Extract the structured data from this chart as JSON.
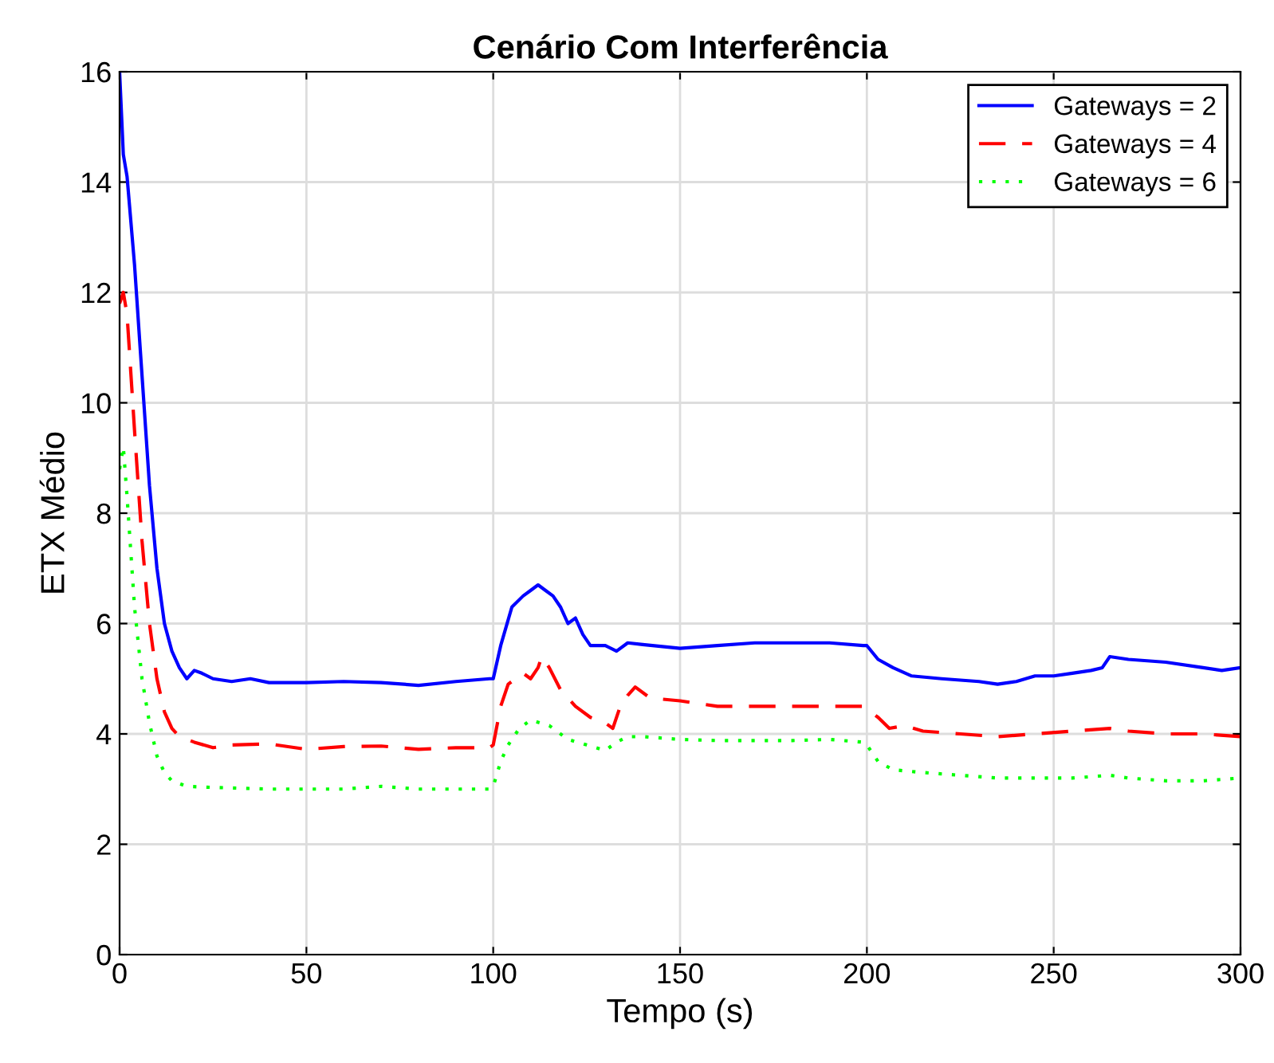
{
  "chart_data": {
    "type": "line",
    "title": "Cenário Com Interferência",
    "xlabel": "Tempo (s)",
    "ylabel": "ETX Médio",
    "xlim": [
      0,
      300
    ],
    "ylim": [
      0,
      16
    ],
    "xticks": [
      0,
      50,
      100,
      150,
      200,
      250,
      300
    ],
    "yticks": [
      0,
      2,
      4,
      6,
      8,
      10,
      12,
      14,
      16
    ],
    "grid": true,
    "legend": "top right",
    "series": [
      {
        "name": "Gateways = 2",
        "color": "#0000ff",
        "line_style": "solid",
        "x": [
          0,
          1,
          2,
          4,
          6,
          8,
          10,
          12,
          14,
          16,
          18,
          20,
          22,
          25,
          30,
          35,
          40,
          50,
          60,
          70,
          80,
          90,
          99,
          100,
          102,
          105,
          108,
          110,
          112,
          114,
          116,
          118,
          120,
          122,
          124,
          126,
          130,
          133,
          136,
          140,
          150,
          160,
          170,
          180,
          190,
          199,
          200,
          203,
          207,
          212,
          220,
          230,
          235,
          240,
          245,
          250,
          255,
          260,
          263,
          265,
          270,
          280,
          290,
          295,
          300
        ],
        "values": [
          16,
          14.5,
          14.1,
          12.5,
          10.5,
          8.5,
          7.0,
          6.0,
          5.5,
          5.2,
          5.0,
          5.15,
          5.1,
          5.0,
          4.95,
          5.0,
          4.93,
          4.93,
          4.95,
          4.93,
          4.88,
          4.95,
          5.0,
          5.0,
          5.6,
          6.3,
          6.5,
          6.6,
          6.7,
          6.6,
          6.5,
          6.3,
          6.0,
          6.1,
          5.8,
          5.6,
          5.6,
          5.5,
          5.65,
          5.62,
          5.55,
          5.6,
          5.65,
          5.65,
          5.65,
          5.6,
          5.6,
          5.35,
          5.2,
          5.05,
          5.0,
          4.95,
          4.9,
          4.95,
          5.05,
          5.05,
          5.1,
          5.15,
          5.2,
          5.4,
          5.35,
          5.3,
          5.2,
          5.15,
          5.2
        ]
      },
      {
        "name": "Gateways = 4",
        "color": "#ff0000",
        "line_style": "dashed",
        "x": [
          0,
          1,
          2,
          4,
          6,
          8,
          10,
          12,
          14,
          16,
          20,
          25,
          30,
          40,
          50,
          60,
          70,
          80,
          90,
          99,
          100,
          102,
          104,
          106,
          108,
          110,
          112,
          113,
          115,
          118,
          122,
          126,
          130,
          132,
          134,
          136,
          138,
          142,
          150,
          160,
          170,
          180,
          190,
          199,
          200,
          203,
          206,
          210,
          215,
          225,
          235,
          245,
          255,
          265,
          270,
          280,
          290,
          300
        ],
        "values": [
          11.8,
          12.0,
          11.6,
          9.5,
          7.5,
          6.0,
          5.0,
          4.4,
          4.1,
          3.95,
          3.85,
          3.75,
          3.8,
          3.82,
          3.72,
          3.77,
          3.78,
          3.72,
          3.75,
          3.75,
          3.8,
          4.5,
          4.9,
          5.0,
          5.1,
          5.0,
          5.2,
          5.4,
          5.2,
          4.8,
          4.5,
          4.3,
          4.2,
          4.1,
          4.5,
          4.7,
          4.85,
          4.65,
          4.6,
          4.5,
          4.5,
          4.5,
          4.5,
          4.5,
          4.45,
          4.3,
          4.1,
          4.15,
          4.05,
          4.0,
          3.95,
          4.0,
          4.05,
          4.1,
          4.05,
          4.0,
          4.0,
          3.95
        ]
      },
      {
        "name": "Gateways = 6",
        "color": "#00ff00",
        "line_style": "dotted",
        "x": [
          0,
          1,
          2,
          4,
          6,
          8,
          10,
          12,
          14,
          18,
          25,
          40,
          50,
          60,
          70,
          80,
          90,
          99,
          100,
          102,
          104,
          107,
          110,
          115,
          120,
          125,
          130,
          133,
          136,
          140,
          150,
          160,
          170,
          180,
          190,
          199,
          200,
          203,
          207,
          215,
          225,
          235,
          245,
          255,
          265,
          270,
          280,
          290,
          300
        ],
        "values": [
          8.8,
          9.2,
          8.3,
          6.3,
          5.0,
          4.2,
          3.6,
          3.3,
          3.15,
          3.05,
          3.03,
          3.0,
          3.0,
          3.0,
          3.05,
          3.0,
          3.0,
          3.0,
          3.05,
          3.5,
          3.8,
          4.1,
          4.25,
          4.15,
          3.9,
          3.8,
          3.7,
          3.85,
          3.95,
          3.95,
          3.9,
          3.88,
          3.88,
          3.88,
          3.9,
          3.85,
          3.8,
          3.5,
          3.35,
          3.3,
          3.25,
          3.2,
          3.2,
          3.2,
          3.25,
          3.2,
          3.15,
          3.15,
          3.2
        ]
      }
    ]
  }
}
